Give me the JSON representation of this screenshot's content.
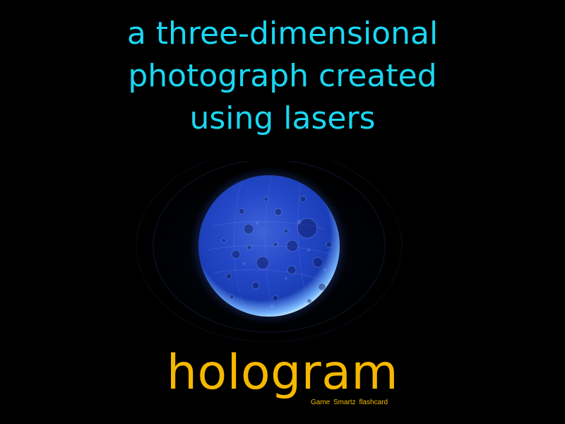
{
  "flashcard": {
    "definition_lines": [
      "a three-dimensional",
      "photograph created",
      "using lasers"
    ],
    "term": "hologram",
    "brand": "Game Smartz flashcard",
    "image": {
      "subject": "glowing blue moon-like sphere icon",
      "icon_name": "hologram-moon-icon"
    },
    "colors": {
      "background": "#000000",
      "definition_text": "#1ad7f2",
      "term_text": "#f5b800",
      "sphere_glow": "#3f7bff"
    }
  }
}
